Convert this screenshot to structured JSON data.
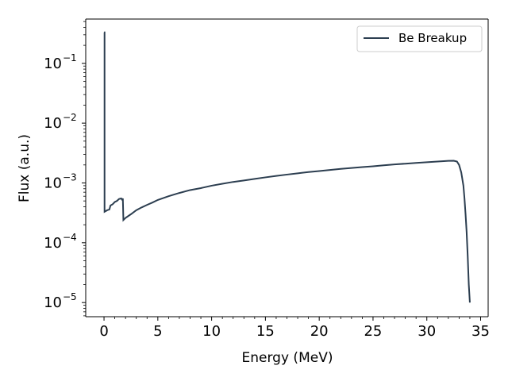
{
  "chart_data": {
    "type": "line",
    "xlabel": "Energy (MeV)",
    "ylabel": "Flux (a.u.)",
    "x_scale": "linear",
    "y_scale": "log",
    "xlim": [
      -1.7,
      35.7
    ],
    "ylim": [
      5.8e-06,
      0.55
    ],
    "x_ticks": [
      0,
      5,
      10,
      15,
      20,
      25,
      30,
      35
    ],
    "x_tick_labels": [
      "0",
      "5",
      "10",
      "15",
      "20",
      "25",
      "30",
      "35"
    ],
    "y_ticks": [
      1e-05,
      0.0001,
      0.001,
      0.01,
      0.1
    ],
    "y_tick_labels": [
      {
        "base": "10",
        "exp": "−5"
      },
      {
        "base": "10",
        "exp": "−4"
      },
      {
        "base": "10",
        "exp": "−3"
      },
      {
        "base": "10",
        "exp": "−2"
      },
      {
        "base": "10",
        "exp": "−1"
      }
    ],
    "grid": false,
    "legend_position": "top-right",
    "line_style": "steps",
    "series": [
      {
        "name": "Be Breakup",
        "color": "#2c3e50",
        "points": [
          [
            0.0,
            0.33
          ],
          [
            0.05,
            0.33
          ],
          [
            0.05,
            0.00033
          ],
          [
            0.3,
            0.00035
          ],
          [
            0.5,
            0.00036
          ],
          [
            0.6,
            0.00042
          ],
          [
            0.8,
            0.00044
          ],
          [
            1.0,
            0.00048
          ],
          [
            1.2,
            0.0005
          ],
          [
            1.4,
            0.00054
          ],
          [
            1.6,
            0.00055
          ],
          [
            1.7,
            0.00052
          ],
          [
            1.75,
            0.00055
          ],
          [
            1.8,
            0.00024
          ],
          [
            2.0,
            0.00026
          ],
          [
            2.5,
            0.0003
          ],
          [
            3.0,
            0.00035
          ],
          [
            3.5,
            0.00039
          ],
          [
            4.0,
            0.00043
          ],
          [
            4.5,
            0.00047
          ],
          [
            5.0,
            0.00052
          ],
          [
            6.0,
            0.0006
          ],
          [
            7.0,
            0.00068
          ],
          [
            8.0,
            0.00076
          ],
          [
            9.0,
            0.00082
          ],
          [
            10.0,
            0.0009
          ],
          [
            11.0,
            0.00097
          ],
          [
            12.0,
            0.00104
          ],
          [
            13.0,
            0.0011
          ],
          [
            14.0,
            0.00117
          ],
          [
            15.0,
            0.00124
          ],
          [
            16.0,
            0.00131
          ],
          [
            17.0,
            0.00138
          ],
          [
            18.0,
            0.00145
          ],
          [
            19.0,
            0.00152
          ],
          [
            20.0,
            0.00158
          ],
          [
            21.0,
            0.00165
          ],
          [
            22.0,
            0.00172
          ],
          [
            23.0,
            0.00178
          ],
          [
            24.0,
            0.00184
          ],
          [
            25.0,
            0.0019
          ],
          [
            26.0,
            0.00197
          ],
          [
            27.0,
            0.00204
          ],
          [
            28.0,
            0.0021
          ],
          [
            29.0,
            0.00216
          ],
          [
            30.0,
            0.00222
          ],
          [
            31.0,
            0.00228
          ],
          [
            32.0,
            0.00234
          ],
          [
            32.5,
            0.00235
          ],
          [
            32.8,
            0.00228
          ],
          [
            33.0,
            0.002
          ],
          [
            33.2,
            0.0015
          ],
          [
            33.4,
            0.0009
          ],
          [
            33.5,
            0.00055
          ],
          [
            33.6,
            0.0003
          ],
          [
            33.7,
            0.00015
          ],
          [
            33.8,
            6e-05
          ],
          [
            33.9,
            2e-05
          ],
          [
            34.0,
            1e-05
          ]
        ]
      }
    ]
  }
}
